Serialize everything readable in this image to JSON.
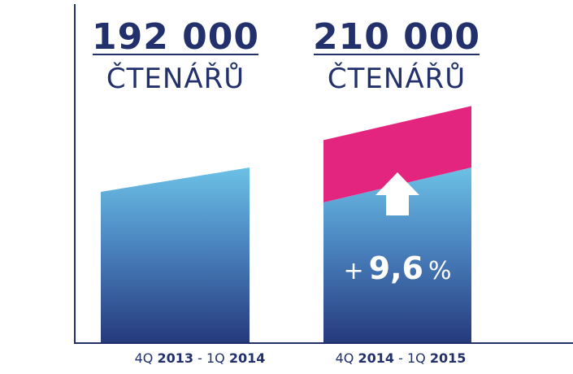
{
  "colors": {
    "navy": "#22306b",
    "light_blue": "#6cc1e6",
    "deep_blue": "#2a3e80",
    "magenta": "#e4257f",
    "white": "#ffffff"
  },
  "chart_data": {
    "type": "bar",
    "categories": [
      "4Q 2013 - 1Q 2014",
      "4Q 2014 - 1Q 2015"
    ],
    "values": [
      192000,
      210000
    ],
    "change_label": {
      "sign": "+",
      "value": "9,6",
      "unit": "%"
    },
    "bars": [
      {
        "value_label": "192 000",
        "unit_label": "ČTENÁŘŮ",
        "period": {
          "prefix": "4Q ",
          "year1": "2013",
          "sep": " - 1Q ",
          "year2": "2014"
        }
      },
      {
        "value_label": "210 000",
        "unit_label": "ČTENÁŘŮ",
        "period": {
          "prefix": "4Q ",
          "year1": "2014",
          "sep": " - 1Q ",
          "year2": "2015"
        },
        "increase_icon": "up-arrow-icon"
      }
    ]
  }
}
